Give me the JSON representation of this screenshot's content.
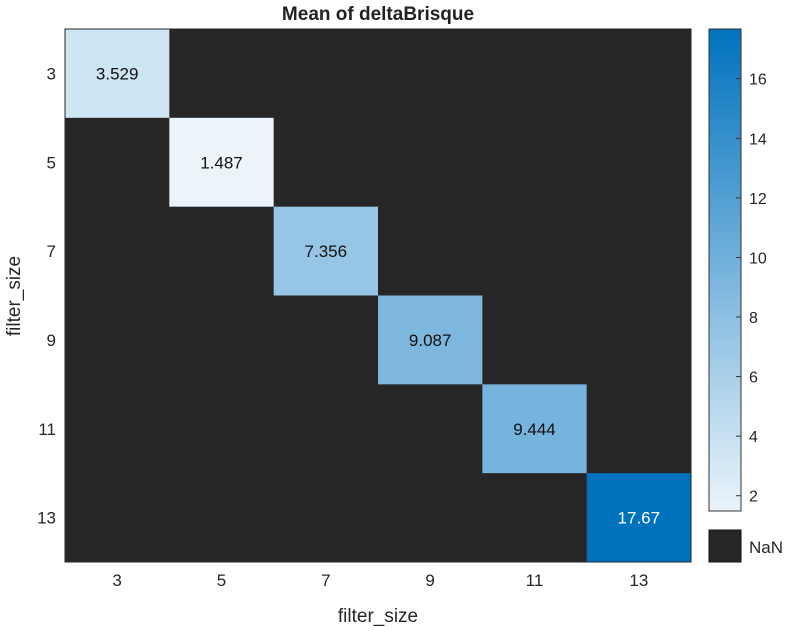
{
  "chart_data": {
    "type": "heatmap",
    "title": "Mean of deltaBrisque",
    "xlabel": "filter_size",
    "ylabel": "filter_size",
    "x_categories": [
      "3",
      "5",
      "7",
      "9",
      "11",
      "13"
    ],
    "y_categories": [
      "3",
      "5",
      "7",
      "9",
      "11",
      "13"
    ],
    "cells": [
      {
        "x": "3",
        "y": "3",
        "value": 3.529,
        "label": "3.529"
      },
      {
        "x": "5",
        "y": "5",
        "value": 1.487,
        "label": "1.487"
      },
      {
        "x": "7",
        "y": "7",
        "value": 7.356,
        "label": "7.356"
      },
      {
        "x": "9",
        "y": "9",
        "value": 9.087,
        "label": "9.087"
      },
      {
        "x": "11",
        "y": "11",
        "value": 9.444,
        "label": "9.444"
      },
      {
        "x": "13",
        "y": "13",
        "value": 17.67,
        "label": "17.67"
      }
    ],
    "missing_label": "NaN",
    "missing_color": "#262626",
    "colorbar": {
      "min": 1.487,
      "max": 17.67,
      "ticks": [
        "2",
        "4",
        "6",
        "8",
        "10",
        "12",
        "14",
        "16"
      ],
      "low_color": "#ebf4fb",
      "high_color": "#0072bd"
    }
  }
}
